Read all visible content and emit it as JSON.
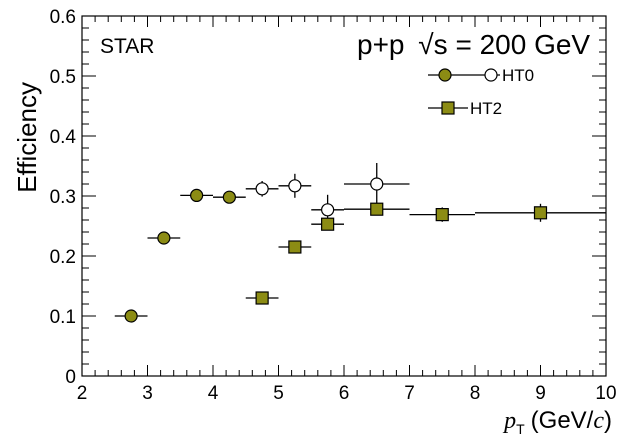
{
  "chart_data": {
    "type": "scatter",
    "experiment_label": "STAR",
    "system_prefix": "p+p",
    "sqrt_symbol": "√",
    "s_letter": "s",
    "energy": "= 200 GeV",
    "ylabel": "Efficiency",
    "xlabel_p": "p",
    "xlabel_T": "T",
    "xlabel_open": "(GeV/",
    "xlabel_c": "c",
    "xlabel_close": ")",
    "xlim": [
      2,
      10
    ],
    "ylim": [
      0,
      0.6
    ],
    "x_ticks": [
      2,
      3,
      4,
      5,
      6,
      7,
      8,
      9,
      10
    ],
    "y_ticks": [
      "0",
      "0.1",
      "0.2",
      "0.3",
      "0.4",
      "0.5",
      "0.6"
    ],
    "legend_position": "top-right",
    "colors": {
      "marker_fill": "#8c8c14",
      "marker_edge": "#000000",
      "open_fill": "#ffffff"
    },
    "series": [
      {
        "name": "HT0",
        "marker": "circle",
        "points": [
          {
            "x": 2.75,
            "xerr": 0.25,
            "y": 0.1,
            "yerr": 0.004,
            "filled": true
          },
          {
            "x": 3.25,
            "xerr": 0.25,
            "y": 0.23,
            "yerr": 0.005,
            "filled": true
          },
          {
            "x": 3.75,
            "xerr": 0.25,
            "y": 0.301,
            "yerr": 0.005,
            "filled": true
          },
          {
            "x": 4.25,
            "xerr": 0.25,
            "y": 0.298,
            "yerr": 0.006,
            "filled": true
          },
          {
            "x": 4.75,
            "xerr": 0.25,
            "y": 0.312,
            "yerr": 0.013,
            "filled": false
          },
          {
            "x": 5.25,
            "xerr": 0.25,
            "y": 0.317,
            "yerr": 0.02,
            "filled": false
          },
          {
            "x": 5.75,
            "xerr": 0.25,
            "y": 0.277,
            "yerr": 0.025,
            "filled": false
          },
          {
            "x": 6.5,
            "xerr": 0.5,
            "y": 0.32,
            "yerr": 0.035,
            "filled": false
          }
        ]
      },
      {
        "name": "HT2",
        "marker": "square",
        "points": [
          {
            "x": 4.75,
            "xerr": 0.25,
            "y": 0.13,
            "yerr": 0.004,
            "filled": true
          },
          {
            "x": 5.25,
            "xerr": 0.25,
            "y": 0.215,
            "yerr": 0.006,
            "filled": true
          },
          {
            "x": 5.75,
            "xerr": 0.25,
            "y": 0.253,
            "yerr": 0.008,
            "filled": true
          },
          {
            "x": 6.5,
            "xerr": 0.5,
            "y": 0.278,
            "yerr": 0.008,
            "filled": true
          },
          {
            "x": 7.5,
            "xerr": 0.5,
            "y": 0.269,
            "yerr": 0.012,
            "filled": true
          },
          {
            "x": 9.0,
            "xerr": 1.0,
            "y": 0.272,
            "yerr": 0.015,
            "filled": true
          }
        ]
      }
    ]
  }
}
